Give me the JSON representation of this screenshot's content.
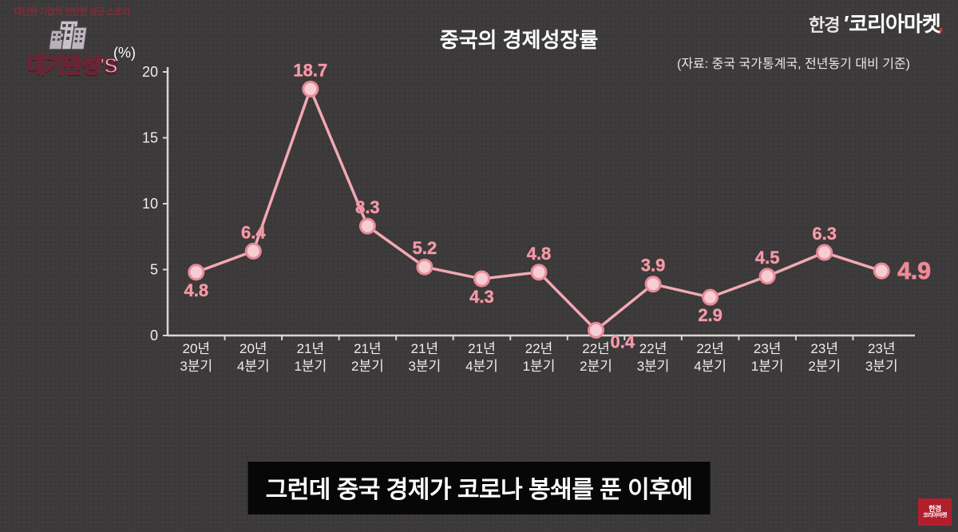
{
  "brand": {
    "left_prefix": "한경",
    "quote": "'",
    "main": "코리아마켓",
    "tail": ","
  },
  "channel_logo": {
    "arc_text": "대단한 기업의 만만한 성공 스토리",
    "title": "대기만성'S"
  },
  "chart": {
    "type": "line",
    "title": "중국의 경제성장률",
    "source": "(자료: 중국 국가통계국, 전년동기 대비 기준)",
    "y_unit": "(%)",
    "background_color": "#3c3a3a",
    "axis_color": "#d9d5d3",
    "axis_fontsize": 18,
    "line_color": "#f2a9b3",
    "line_width": 3.5,
    "marker_fill": "#f6cdd4",
    "marker_stroke": "#e88a97",
    "marker_radius": 9,
    "label_color": "#f39aa8",
    "label_stroke": "#c76e7c",
    "label_fontsize": 22,
    "emph_label_color": "#ef8a97",
    "emph_label_fontsize": 30,
    "ylim": [
      0,
      20
    ],
    "ytick_step": 5,
    "yticks": [
      0,
      5,
      10,
      15,
      20
    ],
    "categories": [
      {
        "l1": "20년",
        "l2": "3분기"
      },
      {
        "l1": "20년",
        "l2": "4분기"
      },
      {
        "l1": "21년",
        "l2": "1분기"
      },
      {
        "l1": "21년",
        "l2": "2분기"
      },
      {
        "l1": "21년",
        "l2": "3분기"
      },
      {
        "l1": "21년",
        "l2": "4분기"
      },
      {
        "l1": "22년",
        "l2": "1분기"
      },
      {
        "l1": "22년",
        "l2": "2분기"
      },
      {
        "l1": "22년",
        "l2": "3분기"
      },
      {
        "l1": "22년",
        "l2": "4분기"
      },
      {
        "l1": "23년",
        "l2": "1분기"
      },
      {
        "l1": "23년",
        "l2": "2분기"
      },
      {
        "l1": "23년",
        "l2": "3분기"
      }
    ],
    "values": [
      4.8,
      6.4,
      18.7,
      8.3,
      5.2,
      4.3,
      4.8,
      0.4,
      3.9,
      2.9,
      4.5,
      6.3,
      4.9
    ],
    "label_positions": [
      "below",
      "above",
      "above",
      "above",
      "above",
      "below",
      "above",
      "below-right",
      "above",
      "below",
      "above",
      "above",
      "right"
    ],
    "emphasized_index": 12
  },
  "subtitle": "그런데 중국 경제가 코로나 봉쇄를 푼 이후에",
  "watermark_br": {
    "l1": "한경",
    "l2": "코리아마켓"
  }
}
